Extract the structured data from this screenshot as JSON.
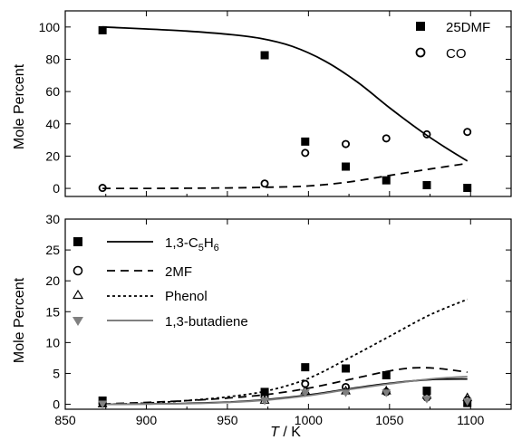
{
  "chart_data": [
    {
      "type": "scatter",
      "panel": "top",
      "ylabel": "Mole Percent",
      "xlim": [
        850,
        1125
      ],
      "ylim": [
        -5,
        110
      ],
      "yticks": [
        0,
        20,
        40,
        60,
        80,
        100
      ],
      "grid": false,
      "legend_position": "top-right",
      "series": [
        {
          "name": "25DMF",
          "kind": "points",
          "marker": "filled-square",
          "x": [
            873,
            973,
            998,
            1023,
            1048,
            1073,
            1098
          ],
          "y": [
            98,
            82.5,
            29,
            13.5,
            5,
            2,
            0.3
          ]
        },
        {
          "name": "CO",
          "kind": "points",
          "marker": "open-circle",
          "x": [
            873,
            973,
            998,
            1023,
            1048,
            1073,
            1098
          ],
          "y": [
            0.3,
            3,
            22,
            27.5,
            31,
            33.5,
            35
          ]
        },
        {
          "kind": "line",
          "style": "solid",
          "color": "#000000",
          "x": [
            873,
            900,
            925,
            950,
            970,
            990,
            1010,
            1030,
            1050,
            1070,
            1085,
            1098
          ],
          "y": [
            100,
            98.8,
            97.5,
            95.5,
            93,
            88,
            79,
            66,
            50,
            35,
            25,
            17
          ]
        },
        {
          "kind": "line",
          "style": "dashed",
          "color": "#000000",
          "x": [
            873,
            900,
            925,
            950,
            975,
            1000,
            1025,
            1050,
            1075,
            1098
          ],
          "y": [
            0,
            0,
            0.1,
            0.3,
            0.7,
            1.5,
            4,
            8,
            12,
            15.5
          ]
        }
      ]
    },
    {
      "type": "scatter",
      "panel": "bottom",
      "xlabel_italic": "T",
      "xlabel_rest": " / K",
      "ylabel": "Mole Percent",
      "xlim": [
        850,
        1125
      ],
      "ylim": [
        -0.8,
        30
      ],
      "xticks": [
        850,
        900,
        950,
        1000,
        1050,
        1100
      ],
      "yticks": [
        0,
        5,
        10,
        15,
        20,
        25,
        30
      ],
      "grid": false,
      "legend_position": "top-left",
      "legend": [
        {
          "label_main": "1,3-C",
          "sub1": "5",
          "label_mid": "H",
          "sub2": "6",
          "marker": "filled-square",
          "line": "solid"
        },
        {
          "label": "2MF",
          "marker": "open-circle",
          "line": "dashed"
        },
        {
          "label": "Phenol",
          "marker": "open-triangle",
          "line": "dotted"
        },
        {
          "label": "1,3-butadiene",
          "marker": "gray-triangle-down",
          "line": "gray-solid"
        }
      ],
      "series": [
        {
          "kind": "points",
          "marker": "filled-square",
          "x": [
            873,
            973,
            998,
            1023,
            1048,
            1073,
            1098
          ],
          "y": [
            0.6,
            2,
            6,
            5.8,
            4.7,
            2.2,
            0.2
          ]
        },
        {
          "kind": "points",
          "marker": "open-circle",
          "x": [
            873,
            973,
            998,
            1023,
            1048,
            1073,
            1098
          ],
          "y": [
            0.1,
            1.2,
            3.3,
            2.8,
            2,
            1.1,
            0.7
          ]
        },
        {
          "kind": "points",
          "marker": "open-triangle",
          "x": [
            873,
            973,
            998,
            1023,
            1048,
            1073,
            1098
          ],
          "y": [
            0.1,
            0.7,
            2.2,
            2.2,
            2.2,
            1.5,
            1.1
          ]
        },
        {
          "kind": "points",
          "marker": "gray-triangle-down",
          "x": [
            873,
            973,
            998,
            1023,
            1048,
            1073,
            1098
          ],
          "y": [
            0,
            0.5,
            1.8,
            1.8,
            1.8,
            0.8,
            0.4
          ]
        },
        {
          "kind": "line",
          "style": "solid",
          "color": "#000000",
          "x": [
            873,
            900,
            925,
            950,
            975,
            1000,
            1025,
            1050,
            1075,
            1098
          ],
          "y": [
            0,
            0.05,
            0.15,
            0.35,
            0.8,
            1.5,
            2.5,
            3.4,
            4,
            4.1
          ]
        },
        {
          "kind": "line",
          "style": "dashed",
          "color": "#000000",
          "x": [
            873,
            900,
            925,
            950,
            975,
            1000,
            1025,
            1050,
            1065,
            1080,
            1098
          ],
          "y": [
            0.05,
            0.3,
            0.6,
            1,
            1.6,
            2.6,
            4,
            5.4,
            5.9,
            5.8,
            5.2
          ]
        },
        {
          "kind": "line",
          "style": "dotted",
          "color": "#000000",
          "x": [
            873,
            900,
            925,
            950,
            975,
            1000,
            1025,
            1050,
            1075,
            1098
          ],
          "y": [
            0,
            0.2,
            0.6,
            1.2,
            2.2,
            4.2,
            7.5,
            11,
            14.5,
            17
          ]
        },
        {
          "kind": "line",
          "style": "solid",
          "color": "#808080",
          "x": [
            873,
            900,
            925,
            950,
            975,
            1000,
            1025,
            1050,
            1075,
            1098
          ],
          "y": [
            0,
            0.05,
            0.1,
            0.3,
            0.7,
            1.4,
            2.4,
            3.3,
            4.1,
            4.5
          ]
        }
      ]
    }
  ]
}
